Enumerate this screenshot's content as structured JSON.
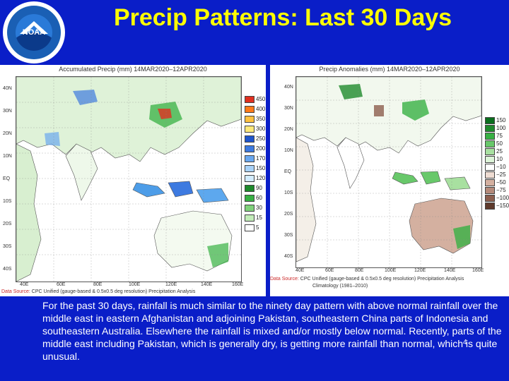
{
  "logo": {
    "text": "NOAA"
  },
  "slide": {
    "title": "Precip Patterns: Last 30 Days",
    "caption": "For the past 30 days, rainfall is much similar to the ninety day pattern with above normal rainfall over the middle east in eastern Afghanistan and adjoining Pakistan, southeastern China parts of Indonesia and southeastern Australia. Elsewhere the rainfall is mixed and/or mostly below normal. Recently, parts of the middle east including Pakistan, which is generally dry, is getting more rainfall than normal, which is quite unusual.",
    "page_number": "4"
  },
  "left_map": {
    "title": "Accumulated Precip (mm) 14MAR2020–12APR2020",
    "lat_labels": [
      "40N",
      "30N",
      "20N",
      "10N",
      "EQ",
      "10S",
      "20S",
      "30S",
      "40S"
    ],
    "lon_labels": [
      "40E",
      "60E",
      "80E",
      "100E",
      "120E",
      "140E",
      "160E"
    ],
    "legend": [
      {
        "label": "450",
        "color": "#e03020"
      },
      {
        "label": "400",
        "color": "#ff7a1a"
      },
      {
        "label": "350",
        "color": "#ffc040"
      },
      {
        "label": "300",
        "color": "#ffe87a"
      },
      {
        "label": "250",
        "color": "#1f55cc"
      },
      {
        "label": "200",
        "color": "#3d7ae0"
      },
      {
        "label": "170",
        "color": "#6aa8f0"
      },
      {
        "label": "150",
        "color": "#a8d2f8"
      },
      {
        "label": "120",
        "color": "#d2ecff"
      },
      {
        "label": "90",
        "color": "#1e8a2c"
      },
      {
        "label": "60",
        "color": "#37b043"
      },
      {
        "label": "30",
        "color": "#7fd17a"
      },
      {
        "label": "15",
        "color": "#c2ecb8"
      },
      {
        "label": "5",
        "color": "#ffffff"
      }
    ],
    "source_prefix": "Data Source:",
    "source_text": " CPC Unified (gauge-based & 0.5x0.5 deg resolution) Precipitation Analysis"
  },
  "right_map": {
    "title": "Precip Anomalies (mm) 14MAR2020–12APR2020",
    "lat_labels": [
      "40N",
      "30N",
      "20N",
      "10N",
      "EQ",
      "10S",
      "20S",
      "30S",
      "40S"
    ],
    "lon_labels": [
      "40E",
      "60E",
      "80E",
      "100E",
      "120E",
      "140E",
      "160E"
    ],
    "legend": [
      {
        "label": "150",
        "color": "#0a6e1e"
      },
      {
        "label": "100",
        "color": "#1e8a2c"
      },
      {
        "label": "75",
        "color": "#37b043"
      },
      {
        "label": "50",
        "color": "#68c86a"
      },
      {
        "label": "25",
        "color": "#a8e0a0"
      },
      {
        "label": "10",
        "color": "#ddf4d8"
      },
      {
        "label": "−10",
        "color": "#ffffff"
      },
      {
        "label": "−25",
        "color": "#eedcd2"
      },
      {
        "label": "−50",
        "color": "#d4b0a0"
      },
      {
        "label": "−75",
        "color": "#b58a7a"
      },
      {
        "label": "−100",
        "color": "#8c5e4e"
      },
      {
        "label": "−150",
        "color": "#5e3a2c"
      }
    ],
    "source_prefix": "Data Source:",
    "source_text": " CPC Unified (gauge-based & 0.5x0.5 deg resolution) Precipitation Analysis",
    "climatology": "Climatology (1981–2010)"
  }
}
